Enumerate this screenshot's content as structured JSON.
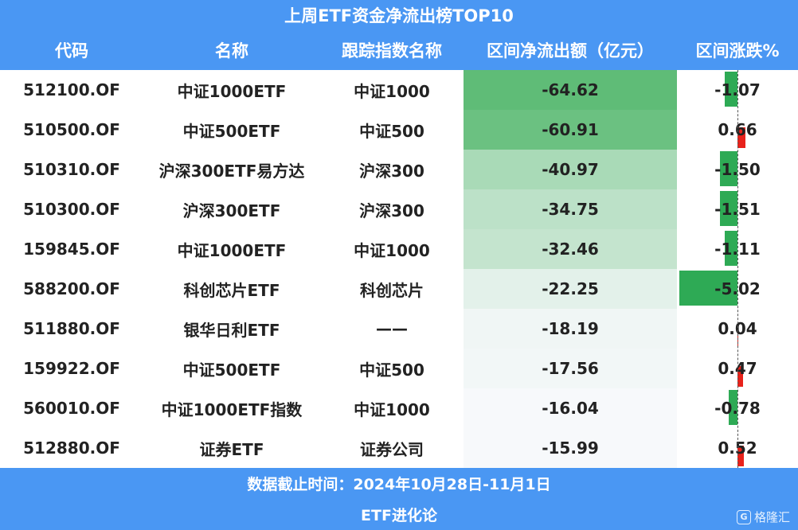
{
  "title": "上周ETF资金净流出榜TOP10",
  "headers": [
    "代码",
    "名称",
    "跟踪指数名称",
    "区间净流出额（亿元）",
    "区间涨跌%"
  ],
  "chart_data": {
    "type": "table",
    "title": "上周ETF资金净流出榜TOP10",
    "columns": [
      "代码",
      "名称",
      "跟踪指数名称",
      "区间净流出额（亿元）",
      "区间涨跌%"
    ],
    "rows": [
      {
        "code": "512100.OF",
        "name": "中证1000ETF",
        "index": "中证1000",
        "outflow": "-64.62",
        "change": "-1.07"
      },
      {
        "code": "510500.OF",
        "name": "中证500ETF",
        "index": "中证500",
        "outflow": "-60.91",
        "change": "0.66"
      },
      {
        "code": "510310.OF",
        "name": "沪深300ETF易方达",
        "index": "沪深300",
        "outflow": "-40.97",
        "change": "-1.50"
      },
      {
        "code": "510300.OF",
        "name": "沪深300ETF",
        "index": "沪深300",
        "outflow": "-34.75",
        "change": "-1.51"
      },
      {
        "code": "159845.OF",
        "name": "中证1000ETF",
        "index": "中证1000",
        "outflow": "-32.46",
        "change": "-1.11"
      },
      {
        "code": "588200.OF",
        "name": "科创芯片ETF",
        "index": "科创芯片",
        "outflow": "-22.25",
        "change": "-5.02"
      },
      {
        "code": "511880.OF",
        "name": "银华日利ETF",
        "index": "——",
        "outflow": "-18.19",
        "change": "0.04"
      },
      {
        "code": "159922.OF",
        "name": "中证500ETF",
        "index": "中证500",
        "outflow": "-17.56",
        "change": "0.47"
      },
      {
        "code": "560010.OF",
        "name": "中证1000ETF指数",
        "index": "中证1000",
        "outflow": "-16.04",
        "change": "-0.78"
      },
      {
        "code": "512880.OF",
        "name": "证券ETF",
        "index": "证券公司",
        "outflow": "-15.99",
        "change": "0.52"
      }
    ],
    "colors": {
      "negative_change": "#2eaa55",
      "positive_change": "#e8221b",
      "outflow_strong": "#5fbc77",
      "outflow_weak": "#f7f9fb"
    }
  },
  "footer": {
    "note": "数据截止时间：2024年10月28日-11月1日",
    "brand": "ETF进化论"
  },
  "watermark": {
    "text": "格隆汇",
    "icon": "G"
  },
  "colors": {
    "header_bg": "#4a97f3",
    "header_text": "#ffffff"
  }
}
